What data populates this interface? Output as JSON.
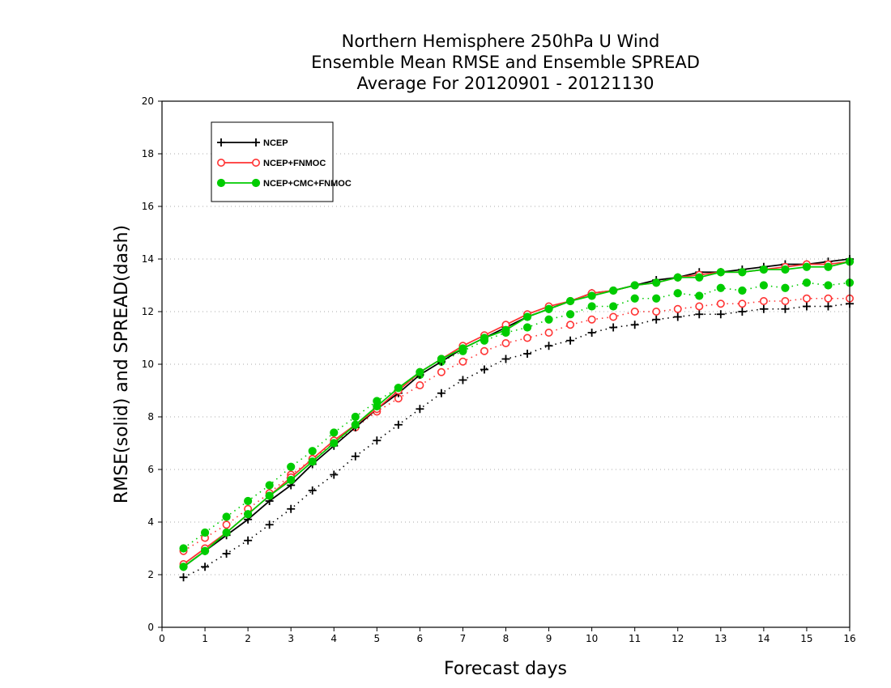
{
  "chart_data": {
    "type": "line",
    "title": [
      "Northern Hemisphere 250hPa U Wind",
      "Ensemble Mean RMSE and Ensemble SPREAD",
      "Average For 20120901 - 20121130"
    ],
    "xlabel": "Forecast days",
    "ylabel": "RMSE(solid) and SPREAD(dash)",
    "xlim": [
      0,
      16
    ],
    "ylim": [
      0,
      20
    ],
    "xticks": [
      0,
      1,
      2,
      3,
      4,
      5,
      6,
      7,
      8,
      9,
      10,
      11,
      12,
      13,
      14,
      15,
      16
    ],
    "yticks": [
      0,
      2,
      4,
      6,
      8,
      10,
      12,
      14,
      16,
      18,
      20
    ],
    "grid": "horizontal-dotted",
    "legend_position": "top-left",
    "x": [
      0.5,
      1,
      1.5,
      2,
      2.5,
      3,
      3.5,
      4,
      4.5,
      5,
      5.5,
      6,
      6.5,
      7,
      7.5,
      8,
      8.5,
      9,
      9.5,
      10,
      10.5,
      11,
      11.5,
      12,
      12.5,
      13,
      13.5,
      14,
      14.5,
      15,
      15.5,
      16
    ],
    "series": [
      {
        "name": "NCEP",
        "kind": "rmse",
        "color": "#000000",
        "marker": "plus",
        "values": [
          2.3,
          2.9,
          3.5,
          4.1,
          4.8,
          5.4,
          6.2,
          6.9,
          7.6,
          8.3,
          8.9,
          9.6,
          10.1,
          10.6,
          11.0,
          11.4,
          11.8,
          12.1,
          12.4,
          12.7,
          12.8,
          13.0,
          13.2,
          13.3,
          13.5,
          13.5,
          13.6,
          13.7,
          13.8,
          13.8,
          13.9,
          14.0
        ]
      },
      {
        "name": "NCEP+FNMOC",
        "kind": "rmse",
        "color": "#ff3333",
        "marker": "open-circle",
        "values": [
          2.4,
          3.0,
          3.6,
          4.3,
          5.0,
          5.7,
          6.4,
          7.1,
          7.7,
          8.3,
          9.0,
          9.7,
          10.2,
          10.7,
          11.1,
          11.5,
          11.9,
          12.2,
          12.4,
          12.7,
          12.8,
          13.0,
          13.1,
          13.3,
          13.4,
          13.5,
          13.5,
          13.6,
          13.7,
          13.8,
          13.8,
          13.9
        ]
      },
      {
        "name": "NCEP+CMC+FNMOC",
        "kind": "rmse",
        "color": "#00cc00",
        "marker": "filled-circle",
        "values": [
          2.3,
          2.9,
          3.6,
          4.3,
          5.0,
          5.6,
          6.3,
          7.0,
          7.7,
          8.4,
          9.1,
          9.7,
          10.2,
          10.6,
          11.0,
          11.3,
          11.8,
          12.1,
          12.4,
          12.6,
          12.8,
          13.0,
          13.1,
          13.3,
          13.3,
          13.5,
          13.5,
          13.6,
          13.6,
          13.7,
          13.7,
          13.9
        ]
      },
      {
        "name": "NCEP",
        "kind": "spread",
        "color": "#000000",
        "marker": "plus",
        "values": [
          1.9,
          2.3,
          2.8,
          3.3,
          3.9,
          4.5,
          5.2,
          5.8,
          6.5,
          7.1,
          7.7,
          8.3,
          8.9,
          9.4,
          9.8,
          10.2,
          10.4,
          10.7,
          10.9,
          11.2,
          11.4,
          11.5,
          11.7,
          11.8,
          11.9,
          11.9,
          12.0,
          12.1,
          12.1,
          12.2,
          12.2,
          12.3
        ]
      },
      {
        "name": "NCEP+FNMOC",
        "kind": "spread",
        "color": "#ff3333",
        "marker": "open-circle",
        "values": [
          2.9,
          3.4,
          3.9,
          4.5,
          5.1,
          5.8,
          6.4,
          7.0,
          7.6,
          8.2,
          8.7,
          9.2,
          9.7,
          10.1,
          10.5,
          10.8,
          11.0,
          11.2,
          11.5,
          11.7,
          11.8,
          12.0,
          12.0,
          12.1,
          12.2,
          12.3,
          12.3,
          12.4,
          12.4,
          12.5,
          12.5,
          12.5
        ]
      },
      {
        "name": "NCEP+CMC+FNMOC",
        "kind": "spread",
        "color": "#00cc00",
        "marker": "filled-circle",
        "values": [
          3.0,
          3.6,
          4.2,
          4.8,
          5.4,
          6.1,
          6.7,
          7.4,
          8.0,
          8.6,
          9.1,
          9.6,
          10.1,
          10.5,
          10.9,
          11.2,
          11.4,
          11.7,
          11.9,
          12.2,
          12.2,
          12.5,
          12.5,
          12.7,
          12.6,
          12.9,
          12.8,
          13.0,
          12.9,
          13.1,
          13.0,
          13.1
        ]
      }
    ],
    "legend": [
      {
        "name": "NCEP",
        "color": "#000000",
        "marker": "plus"
      },
      {
        "name": "NCEP+FNMOC",
        "color": "#ff3333",
        "marker": "open-circle"
      },
      {
        "name": "NCEP+CMC+FNMOC",
        "color": "#00cc00",
        "marker": "filled-circle"
      }
    ]
  }
}
